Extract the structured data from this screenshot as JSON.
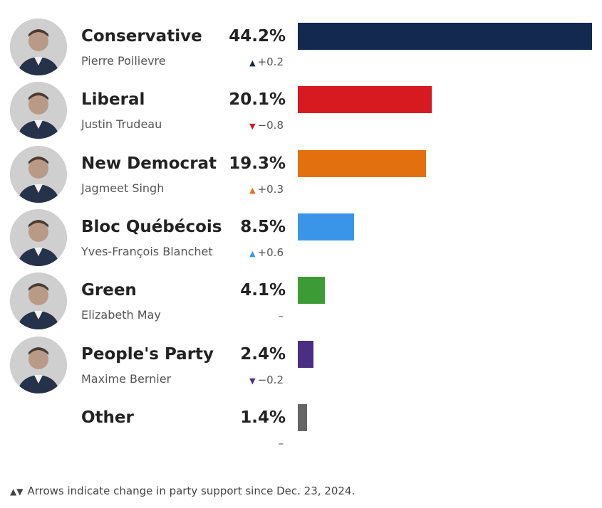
{
  "chart_data": {
    "type": "bar",
    "orientation": "horizontal",
    "title": "",
    "xlim": [
      0,
      44.2
    ],
    "rows": [
      {
        "party": "Conservative",
        "leader": "Pierre Poilievre",
        "value": 44.2,
        "value_label": "44.2%",
        "change_dir": "up",
        "change_label": "+0.2",
        "color": "#14294f",
        "has_avatar": true
      },
      {
        "party": "Liberal",
        "leader": "Justin Trudeau",
        "value": 20.1,
        "value_label": "20.1%",
        "change_dir": "down",
        "change_label": "−0.8",
        "color": "#d71920",
        "has_avatar": true
      },
      {
        "party": "New Democrat",
        "leader": "Jagmeet Singh",
        "value": 19.3,
        "value_label": "19.3%",
        "change_dir": "up",
        "change_label": "+0.3",
        "color": "#e3700f",
        "has_avatar": true
      },
      {
        "party": "Bloc Québécois",
        "leader": "Yves-François Blanchet",
        "value": 8.5,
        "value_label": "8.5%",
        "change_dir": "up",
        "change_label": "+0.6",
        "color": "#3a95e8",
        "has_avatar": true
      },
      {
        "party": "Green",
        "leader": "Elizabeth May",
        "value": 4.1,
        "value_label": "4.1%",
        "change_dir": "none",
        "change_label": "–",
        "color": "#3c9b35",
        "has_avatar": true
      },
      {
        "party": "People's Party",
        "leader": "Maxime Bernier",
        "value": 2.4,
        "value_label": "2.4%",
        "change_dir": "down",
        "change_label": "−0.2",
        "color": "#4b2e83",
        "has_avatar": true
      },
      {
        "party": "Other",
        "leader": "",
        "value": 1.4,
        "value_label": "1.4%",
        "change_dir": "none",
        "change_label": "–",
        "color": "#666666",
        "has_avatar": false
      }
    ]
  },
  "footnote": {
    "arrows": "▲▼",
    "text": "Arrows indicate change in party support since Dec. 23, 2024."
  }
}
